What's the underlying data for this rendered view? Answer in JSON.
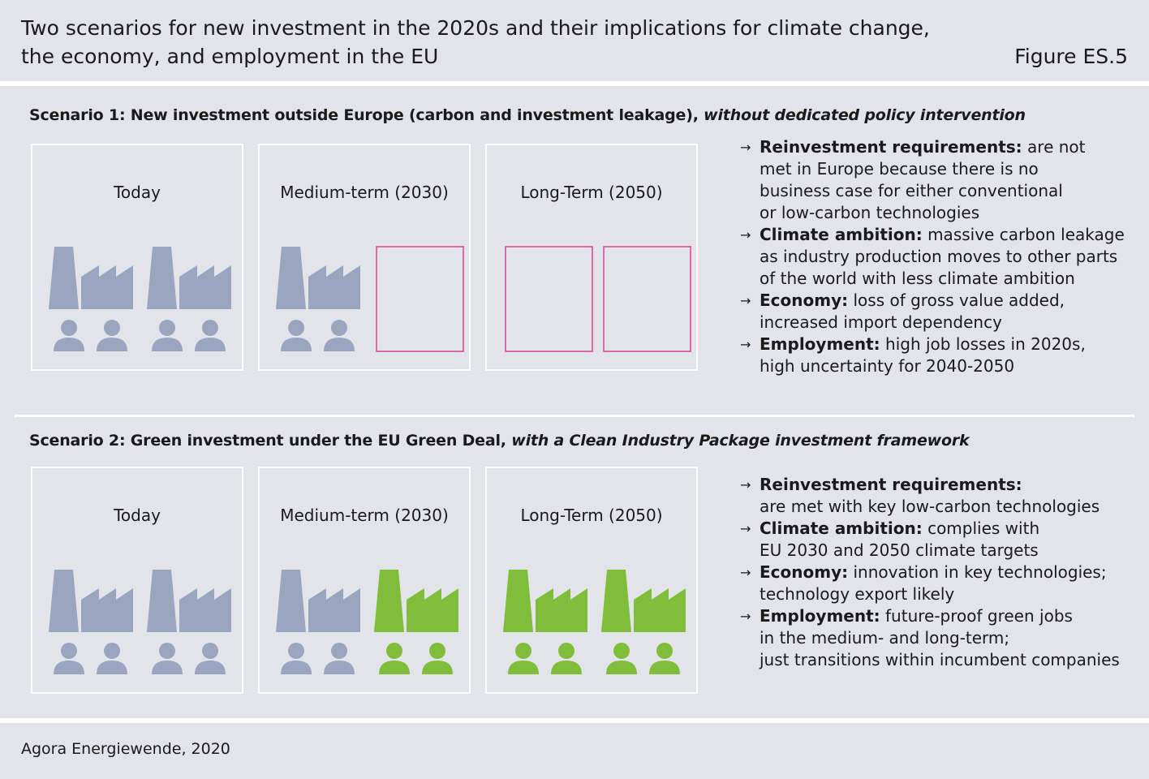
{
  "header": {
    "title_line1": "Two scenarios for new investment in the 2020s and their implications for climate change,",
    "title_line2": "the economy, and employment in the EU",
    "figure_label": "Figure ES.5"
  },
  "colors": {
    "grey": "#9aa6c0",
    "green": "#80bd3b",
    "magenta": "#d9428f",
    "background": "#e3e4e9"
  },
  "scenarios": [
    {
      "title_prefix": "Scenario 1:  New investment outside Europe (carbon and investment leakage), ",
      "title_italic": "without dedicated policy intervention",
      "panels": [
        {
          "label": "Today",
          "slots": [
            "grey",
            "grey"
          ]
        },
        {
          "label": "Medium-term (2030)",
          "slots": [
            "grey",
            "empty"
          ]
        },
        {
          "label": "Long-Term (2050)",
          "slots": [
            "empty",
            "empty"
          ]
        }
      ],
      "bullets": [
        {
          "head": "Reinvestment requirements:",
          "lines": [
            " are not",
            "met in Europe because there is no",
            "business case for either conventional",
            "or low-carbon technologies"
          ]
        },
        {
          "head": "Climate ambition:",
          "lines": [
            " massive carbon leakage",
            "as industry production moves to other parts",
            "of the world with less climate ambition"
          ]
        },
        {
          "head": "Economy:",
          "lines": [
            " loss of gross value added,",
            "increased import dependency"
          ]
        },
        {
          "head": "Employment:",
          "lines": [
            " high job losses in 2020s,",
            "high uncertainty for 2040-2050"
          ]
        }
      ]
    },
    {
      "title_prefix": "Scenario 2: Green investment under the EU Green Deal, ",
      "title_italic": "with a Clean Industry Package investment framework",
      "panels": [
        {
          "label": "Today",
          "slots": [
            "grey",
            "grey"
          ]
        },
        {
          "label": "Medium-term (2030)",
          "slots": [
            "grey",
            "green"
          ]
        },
        {
          "label": "Long-Term (2050)",
          "slots": [
            "green",
            "green"
          ]
        }
      ],
      "bullets": [
        {
          "head": "Reinvestment requirements:",
          "lines": [
            "",
            "are met with key low-carbon technologies"
          ]
        },
        {
          "head": "Climate ambition:",
          "lines": [
            " complies with",
            "EU 2030 and 2050 climate targets"
          ]
        },
        {
          "head": "Economy:",
          "lines": [
            " innovation in key technologies;",
            "technology export likely"
          ]
        },
        {
          "head": "Employment:",
          "lines": [
            " future-proof green jobs",
            "in the medium- and long-term;",
            "just transitions within incumbent companies"
          ]
        }
      ]
    }
  ],
  "footer": {
    "source": "Agora Energiewende, 2020"
  }
}
